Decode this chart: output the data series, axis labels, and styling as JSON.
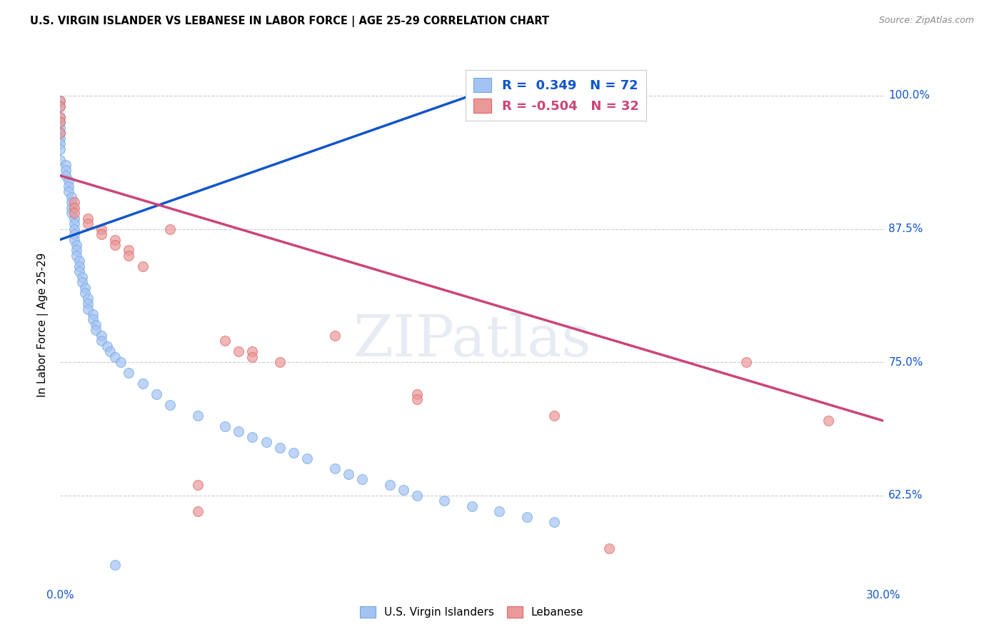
{
  "title": "U.S. VIRGIN ISLANDER VS LEBANESE IN LABOR FORCE | AGE 25-29 CORRELATION CHART",
  "source": "Source: ZipAtlas.com",
  "ylabel": "In Labor Force | Age 25-29",
  "xlim": [
    0.0,
    0.3
  ],
  "ylim": [
    0.54,
    1.03
  ],
  "yticks": [
    0.625,
    0.75,
    0.875,
    1.0
  ],
  "ytick_labels": [
    "62.5%",
    "75.0%",
    "87.5%",
    "100.0%"
  ],
  "xtick_positions": [
    0.0,
    0.05,
    0.1,
    0.15,
    0.2,
    0.25,
    0.3
  ],
  "xtick_labels": [
    "0.0%",
    "",
    "",
    "",
    "",
    "",
    "30.0%"
  ],
  "R_blue": 0.349,
  "N_blue": 72,
  "R_pink": -0.504,
  "N_pink": 32,
  "legend_label_blue": "U.S. Virgin Islanders",
  "legend_label_pink": "Lebanese",
  "blue_color": "#a4c2f4",
  "pink_color": "#ea9999",
  "blue_edge_color": "#6fa8dc",
  "pink_edge_color": "#e06666",
  "trend_blue_color": "#1155cc",
  "trend_pink_color": "#cc4477",
  "watermark": "ZIPatlas",
  "blue_trend_x": [
    0.0,
    0.155
  ],
  "blue_trend_y": [
    0.865,
    1.005
  ],
  "pink_trend_x": [
    0.0,
    0.3
  ],
  "pink_trend_y": [
    0.925,
    0.695
  ],
  "blue_points_x": [
    0.0,
    0.0,
    0.0,
    0.0,
    0.0,
    0.0,
    0.0,
    0.0,
    0.0,
    0.0,
    0.002,
    0.002,
    0.002,
    0.003,
    0.003,
    0.003,
    0.004,
    0.004,
    0.004,
    0.004,
    0.005,
    0.005,
    0.005,
    0.005,
    0.005,
    0.006,
    0.006,
    0.006,
    0.007,
    0.007,
    0.007,
    0.008,
    0.008,
    0.009,
    0.009,
    0.01,
    0.01,
    0.01,
    0.012,
    0.012,
    0.013,
    0.013,
    0.015,
    0.015,
    0.017,
    0.018,
    0.02,
    0.022,
    0.025,
    0.03,
    0.035,
    0.04,
    0.05,
    0.06,
    0.065,
    0.07,
    0.075,
    0.08,
    0.085,
    0.09,
    0.1,
    0.105,
    0.11,
    0.12,
    0.125,
    0.13,
    0.14,
    0.15,
    0.16,
    0.17,
    0.18,
    0.02
  ],
  "blue_points_y": [
    0.995,
    0.99,
    0.98,
    0.975,
    0.97,
    0.965,
    0.96,
    0.955,
    0.95,
    0.94,
    0.935,
    0.93,
    0.925,
    0.92,
    0.915,
    0.91,
    0.905,
    0.9,
    0.895,
    0.89,
    0.885,
    0.88,
    0.875,
    0.87,
    0.865,
    0.86,
    0.855,
    0.85,
    0.845,
    0.84,
    0.835,
    0.83,
    0.825,
    0.82,
    0.815,
    0.81,
    0.805,
    0.8,
    0.795,
    0.79,
    0.785,
    0.78,
    0.775,
    0.77,
    0.765,
    0.76,
    0.755,
    0.75,
    0.74,
    0.73,
    0.72,
    0.71,
    0.7,
    0.69,
    0.685,
    0.68,
    0.675,
    0.67,
    0.665,
    0.66,
    0.65,
    0.645,
    0.64,
    0.635,
    0.63,
    0.625,
    0.62,
    0.615,
    0.61,
    0.605,
    0.6,
    0.56
  ],
  "pink_points_x": [
    0.0,
    0.0,
    0.0,
    0.0,
    0.0,
    0.005,
    0.005,
    0.005,
    0.01,
    0.01,
    0.015,
    0.015,
    0.02,
    0.02,
    0.025,
    0.025,
    0.03,
    0.04,
    0.05,
    0.05,
    0.06,
    0.065,
    0.07,
    0.07,
    0.08,
    0.1,
    0.13,
    0.13,
    0.18,
    0.2,
    0.25,
    0.28
  ],
  "pink_points_y": [
    0.995,
    0.99,
    0.98,
    0.975,
    0.965,
    0.9,
    0.895,
    0.89,
    0.885,
    0.88,
    0.875,
    0.87,
    0.865,
    0.86,
    0.855,
    0.85,
    0.84,
    0.875,
    0.635,
    0.61,
    0.77,
    0.76,
    0.76,
    0.755,
    0.75,
    0.775,
    0.72,
    0.715,
    0.7,
    0.575,
    0.75,
    0.695
  ]
}
